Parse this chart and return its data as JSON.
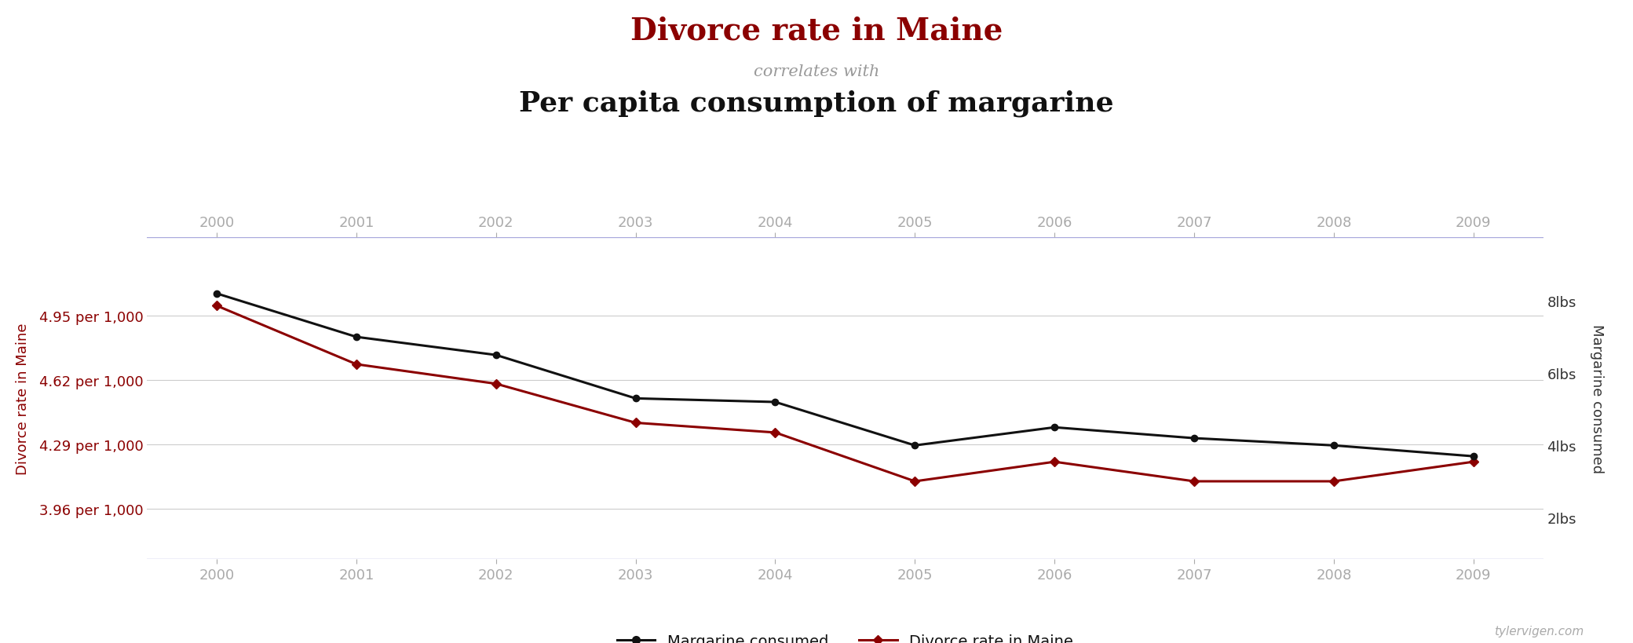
{
  "title_line1": "Divorce rate in Maine",
  "title_line2": "correlates with",
  "title_line3": "Per capita consumption of margarine",
  "years": [
    2000,
    2001,
    2002,
    2003,
    2004,
    2005,
    2006,
    2007,
    2008,
    2009
  ],
  "divorce_rate": [
    5.0,
    4.7,
    4.6,
    4.4,
    4.35,
    4.1,
    4.2,
    4.1,
    4.1,
    4.2
  ],
  "margarine_lbs": [
    8.2,
    7.0,
    6.5,
    5.3,
    5.2,
    4.0,
    4.5,
    4.2,
    4.0,
    3.7
  ],
  "divorce_yticks": [
    3.96,
    4.29,
    4.62,
    4.95
  ],
  "divorce_ytick_labels": [
    "3.96 per 1,000",
    "4.29 per 1,000",
    "4.62 per 1,000",
    "4.95 per 1,000"
  ],
  "margarine_yticks": [
    2,
    4,
    6,
    8
  ],
  "margarine_ytick_labels": [
    "2lbs",
    "4lbs",
    "6lbs",
    "8lbs"
  ],
  "divorce_color": "#8B0000",
  "margarine_color": "#111111",
  "title1_color": "#8B0000",
  "title2_color": "#999999",
  "title3_color": "#111111",
  "axis_label_left": "Divorce rate in Maine",
  "axis_label_right": "Margarine consumed",
  "watermark": "tylervigen.com",
  "legend_margarine": "Margarine consumed",
  "legend_divorce": "Divorce rate in Maine",
  "divorce_ylim": [
    3.7,
    5.35
  ],
  "margarine_ylim": [
    0.85,
    9.75
  ],
  "xlim": [
    1999.5,
    2009.5
  ],
  "background_color": "#ffffff",
  "grid_color": "#cccccc",
  "top_spine_color": "#aaaadd",
  "bottom_spine_color": "#aaaadd"
}
